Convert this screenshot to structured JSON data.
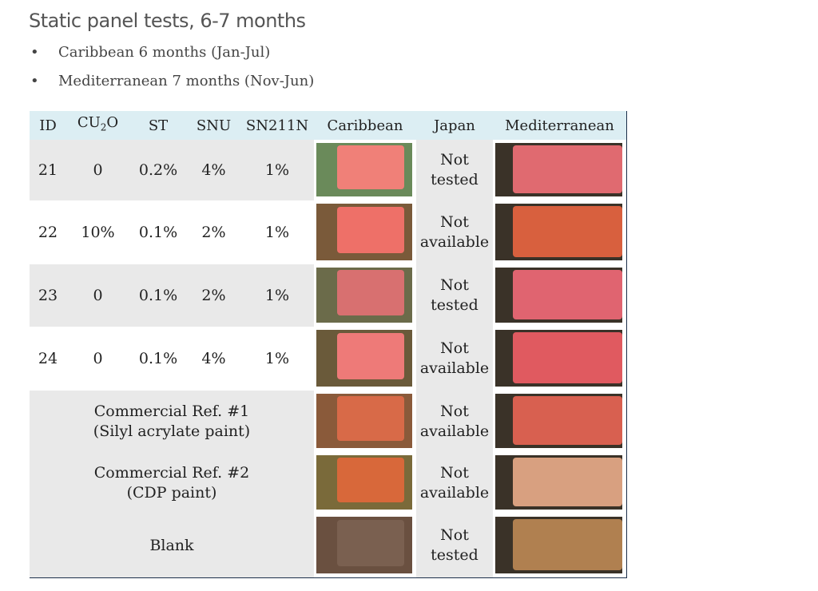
{
  "header": {
    "title": "Static panel tests, 6-7 months"
  },
  "bullets": [
    "Caribbean 6 months (Jan-Jul)",
    "Mediterranean 7 months (Nov-Jun)"
  ],
  "table": {
    "headers": [
      "ID",
      {
        "base": "CU",
        "sub": "2",
        "rest": "O"
      },
      "ST",
      "SNU",
      "SN211N",
      "Caribbean",
      "Japan",
      "Mediterranean"
    ],
    "rows": [
      {
        "cells": [
          "21",
          "0",
          "0.2%",
          "4%",
          "1%"
        ],
        "japan": "Not tested"
      },
      {
        "cells": [
          "22",
          "10%",
          "0.1%",
          "2%",
          "1%"
        ],
        "japan": "Not available"
      },
      {
        "cells": [
          "23",
          "0",
          "0.1%",
          "2%",
          "1%"
        ],
        "japan": "Not tested"
      },
      {
        "cells": [
          "24",
          "0",
          "0.1%",
          "4%",
          "1%"
        ],
        "japan": "Not available"
      },
      {
        "label": [
          "Commercial Ref. #1",
          "(Silyl acrylate paint)"
        ],
        "japan": "Not available"
      },
      {
        "label": [
          "Commercial Ref. #2",
          "(CDP paint)"
        ],
        "japan": "Not available"
      },
      {
        "label": [
          "Blank"
        ],
        "japan": "Not tested"
      }
    ]
  }
}
